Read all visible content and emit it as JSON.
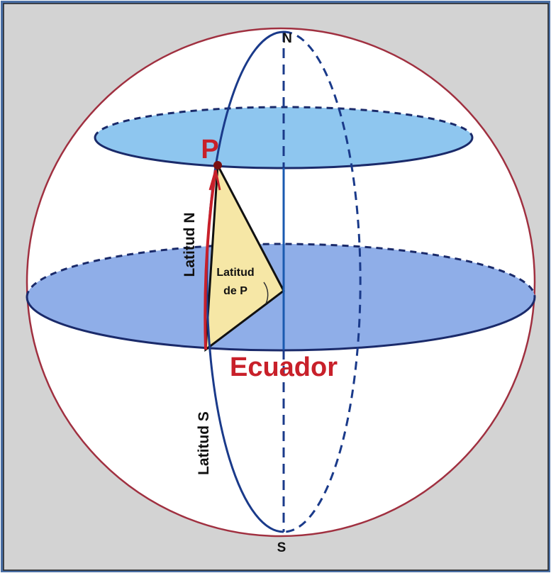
{
  "labels": {
    "north": "N",
    "south": "S",
    "point": "P",
    "equator": "Ecuador",
    "latitude_north": "Latitud N",
    "latitude_p": [
      "Latitud",
      "de P"
    ],
    "latitude_south": "Latitud S"
  }
}
